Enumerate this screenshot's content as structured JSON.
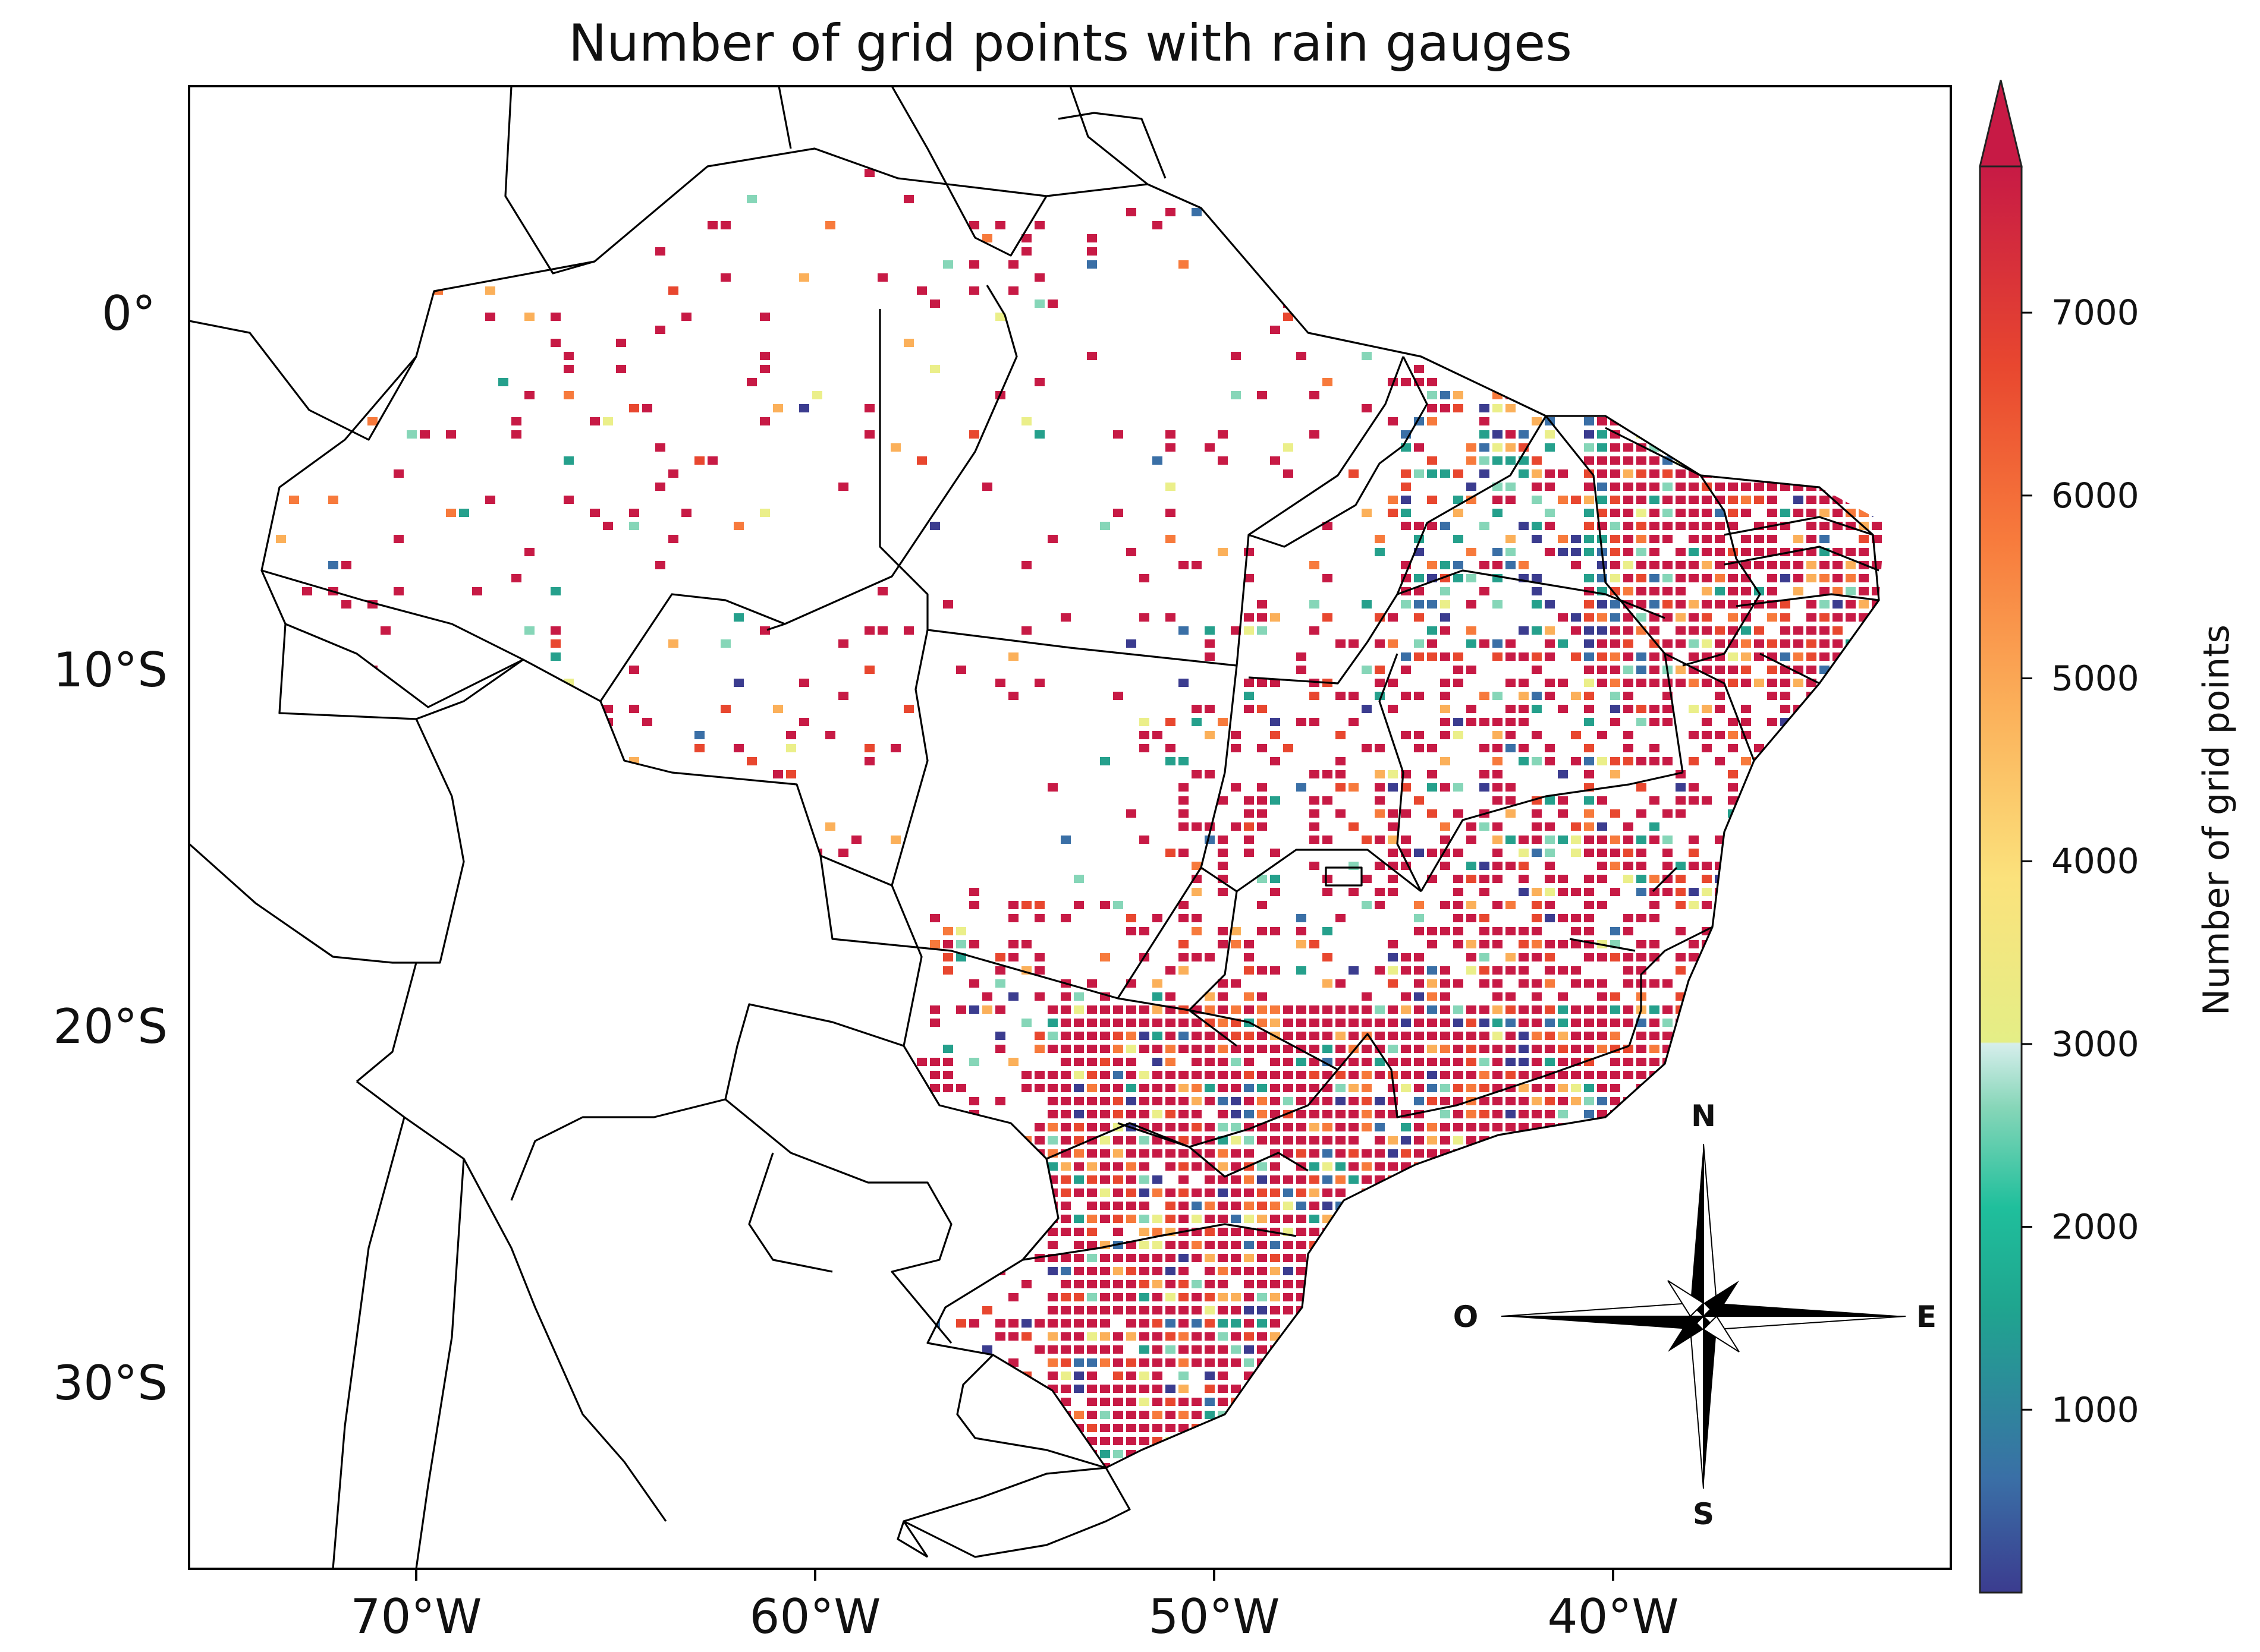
{
  "title": "Number of grid points with rain gauges",
  "map": {
    "lon_range": [
      -75.5,
      -30.5
    ],
    "lat_range": [
      -35.5,
      6.5
    ],
    "x_ticks": [
      "70°W",
      "60°W",
      "50°W",
      "40°W"
    ],
    "y_ticks": [
      "0°",
      "10°S",
      "20°S",
      "30°S"
    ],
    "x_tick_values": [
      -70,
      -60,
      -50,
      -40
    ],
    "y_tick_values": [
      0,
      -10,
      -20,
      -30
    ]
  },
  "colorbar": {
    "label": "Number of grid points",
    "ticks": [
      "1000",
      "2000",
      "3000",
      "4000",
      "5000",
      "6000",
      "7000"
    ],
    "tick_values": [
      1000,
      2000,
      3000,
      4000,
      5000,
      6000,
      7000
    ],
    "range": [
      0,
      7800
    ],
    "extend": "max",
    "colors": [
      "#3b3c8f",
      "#3a6fa6",
      "#25a08c",
      "#1fbf9c",
      "#86d6b8",
      "#d2ecec",
      "#ebef8a",
      "#fbdf74",
      "#fbb05a",
      "#f77a3c",
      "#e8472f",
      "#c71a45"
    ]
  },
  "compass": {
    "north": "N",
    "south": "S",
    "east": "E",
    "west": "O"
  }
}
